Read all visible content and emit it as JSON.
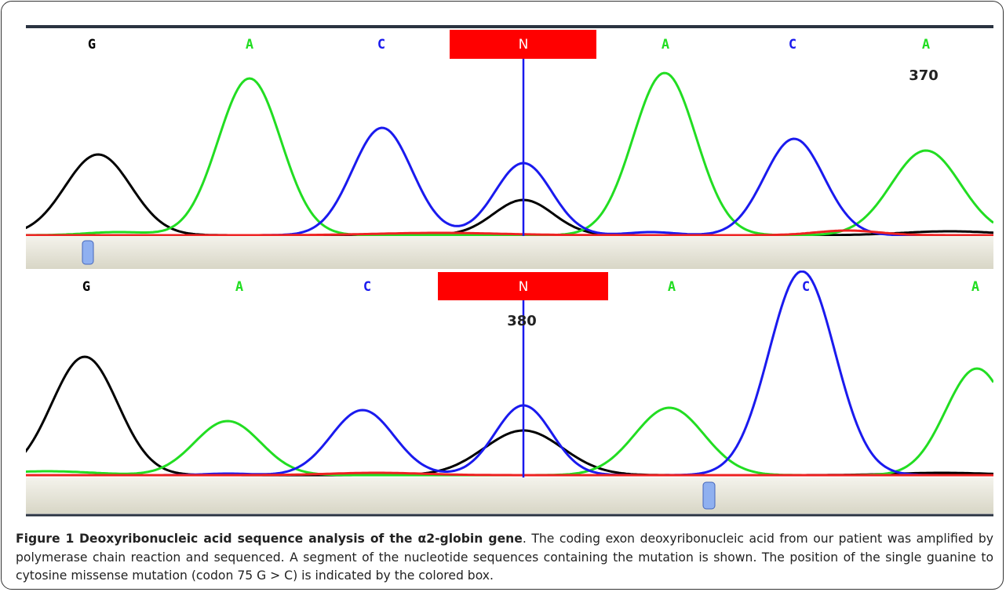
{
  "panels": [
    {
      "bases": [
        "G",
        "A",
        "C",
        "N",
        "A",
        "C",
        "A"
      ],
      "position": "370"
    },
    {
      "bases": [
        "G",
        "A",
        "C",
        "N",
        "A",
        "C",
        "A"
      ],
      "position": "380"
    }
  ],
  "caption": {
    "label": "Figure 1",
    "title": "Deoxyribonucleic acid sequence analysis of the α2-globin gene",
    "text": ". The coding exon deoxyribonucleic acid from our patient was amplified by polymerase chain reaction and sequenced. A segment of the nucleotide sequences containing the mutation is shown. The position of the single guanine to cytosine missense mutation (codon 75 G > C) is indicated by the colored box."
  }
}
